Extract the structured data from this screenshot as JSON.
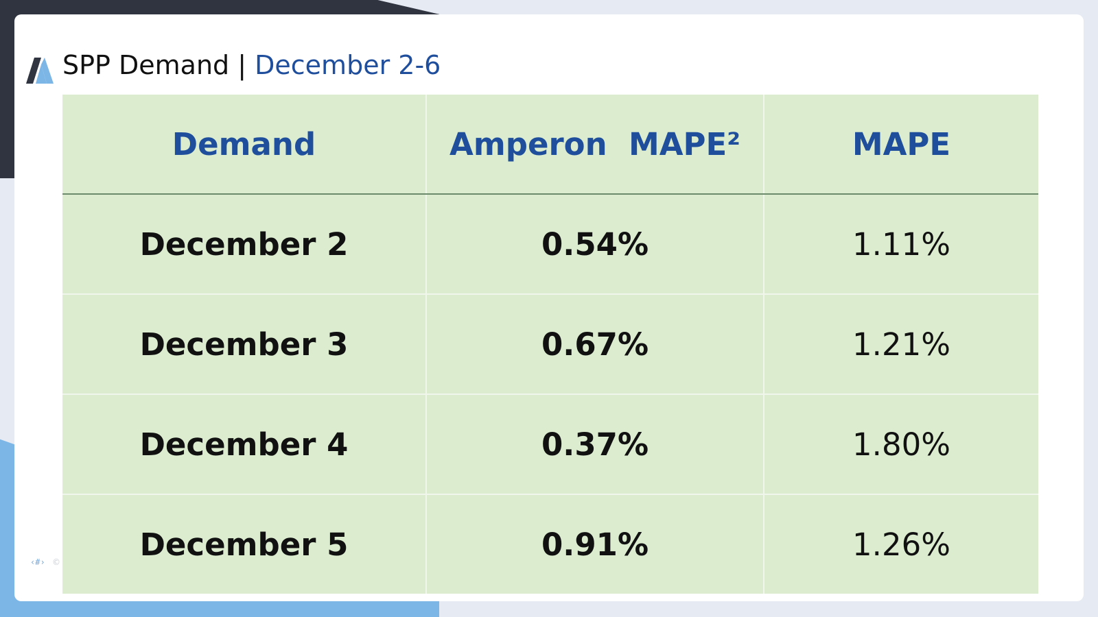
{
  "title": {
    "main": "SPP Demand | ",
    "accent": "December 2-6"
  },
  "colors": {
    "accent_blue": "#1f4e9c",
    "table_fill": "#dbeccf",
    "header_rule": "#6b8a6b",
    "corner_dark": "#2f3440",
    "corner_blue": "#7cb6e6"
  },
  "logo": {
    "icon": "amperon-logo-icon"
  },
  "table": {
    "headers": [
      "Demand",
      "Amperon  MAPE²",
      "MAPE"
    ],
    "rows": [
      {
        "date": "December 2",
        "amperon": "0.54%",
        "mape": "1.11%"
      },
      {
        "date": "December 3",
        "amperon": "0.67%",
        "mape": "1.21%"
      },
      {
        "date": "December 4",
        "amperon": "0.37%",
        "mape": "1.80%"
      },
      {
        "date": "December 5",
        "amperon": "0.91%",
        "mape": "1.26%"
      }
    ]
  },
  "footer": {
    "slide_number": "‹#›",
    "copyright": "©"
  }
}
